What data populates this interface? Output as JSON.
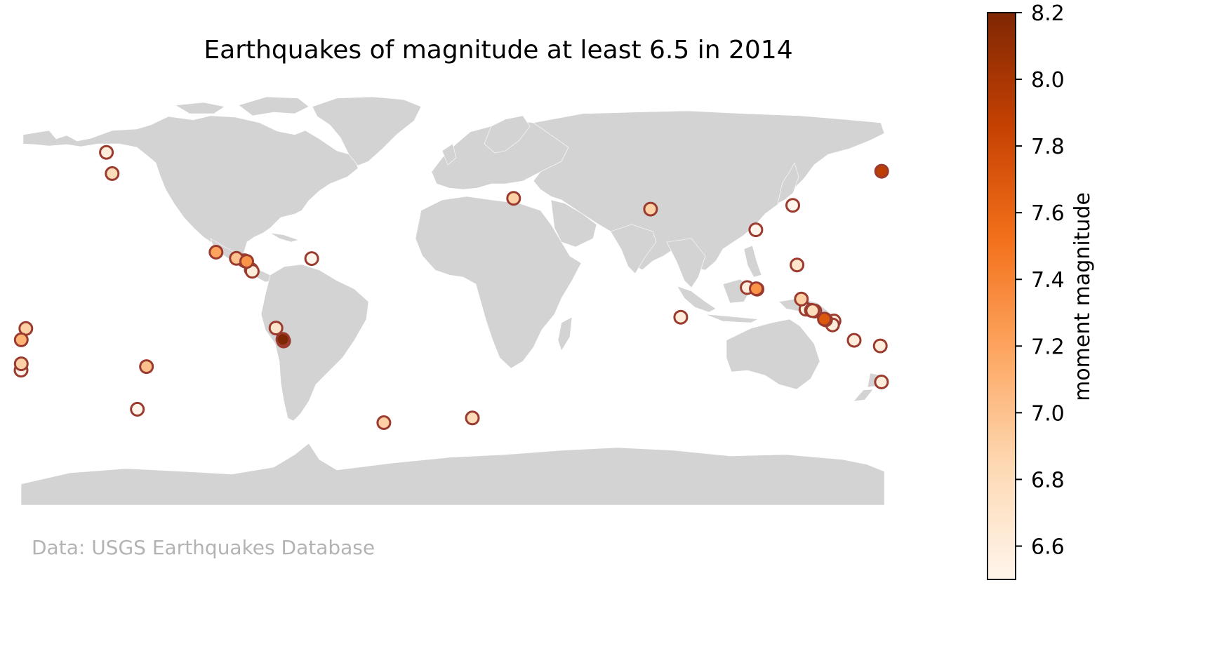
{
  "title": "Earthquakes of magnitude at least 6.5 in 2014",
  "credit": "Data: USGS Earthquakes Database",
  "colors": {
    "land": "#d3d3d3",
    "marker_edge": "#9b3a2e",
    "credit_text": "#b3b3b3",
    "colormap": [
      "#fff5eb",
      "#fdd9b4",
      "#fda762",
      "#f3701b",
      "#c54102",
      "#7f2704"
    ]
  },
  "chart_data": {
    "type": "scatter",
    "projection": "equirectangular",
    "xlim": [
      -180,
      180
    ],
    "ylim": [
      -90,
      84
    ],
    "colorbar": {
      "label": "moment magnitude",
      "range": [
        6.5,
        8.2
      ],
      "ticks": [
        "6.6",
        "6.8",
        "7.0",
        "7.2",
        "7.4",
        "7.6",
        "7.8",
        "8.0",
        "8.2"
      ],
      "cmap": "Oranges"
    },
    "points": [
      {
        "lon": -144.4,
        "lat": 59.8,
        "mag": 6.6
      },
      {
        "lon": -142.0,
        "lat": 50.8,
        "mag": 6.8
      },
      {
        "lon": -98.7,
        "lat": 17.4,
        "mag": 7.2
      },
      {
        "lon": -90.2,
        "lat": 14.8,
        "mag": 7.0
      },
      {
        "lon": -86.8,
        "lat": 13.8,
        "mag": 6.6
      },
      {
        "lon": -85.9,
        "lat": 13.5,
        "mag": 7.3
      },
      {
        "lon": -84.0,
        "lat": 10.0,
        "mag": 6.6
      },
      {
        "lon": -83.6,
        "lat": 9.3,
        "mag": 6.6
      },
      {
        "lon": -58.8,
        "lat": 14.7,
        "mag": 6.5
      },
      {
        "lon": -73.7,
        "lat": -14.8,
        "mag": 6.7
      },
      {
        "lon": -70.8,
        "lat": -19.6,
        "mag": 8.2
      },
      {
        "lon": -70.5,
        "lat": -20.3,
        "mag": 7.7
      },
      {
        "lon": -178.0,
        "lat": -15.0,
        "mag": 6.9
      },
      {
        "lon": -179.9,
        "lat": -19.8,
        "mag": 7.1
      },
      {
        "lon": -179.9,
        "lat": -30.0,
        "mag": 6.9
      },
      {
        "lon": -180.0,
        "lat": -32.7,
        "mag": 6.5
      },
      {
        "lon": -127.7,
        "lat": -31.2,
        "mag": 7.0
      },
      {
        "lon": -131.5,
        "lat": -49.3,
        "mag": 6.5
      },
      {
        "lon": -28.7,
        "lat": -55.0,
        "mag": 6.9
      },
      {
        "lon": 8.2,
        "lat": -53.0,
        "mag": 6.8
      },
      {
        "lon": 25.4,
        "lat": 40.3,
        "mag": 6.9
      },
      {
        "lon": 82.5,
        "lat": 35.7,
        "mag": 6.9
      },
      {
        "lon": 141.8,
        "lat": 37.3,
        "mag": 6.5
      },
      {
        "lon": 126.4,
        "lat": 26.9,
        "mag": 6.5
      },
      {
        "lon": 143.6,
        "lat": 12.0,
        "mag": 6.7
      },
      {
        "lon": 122.8,
        "lat": 2.4,
        "mag": 6.6
      },
      {
        "lon": 126.6,
        "lat": 1.9,
        "mag": 7.3
      },
      {
        "lon": 126.9,
        "lat": 1.7,
        "mag": 6.6
      },
      {
        "lon": 145.4,
        "lat": -2.5,
        "mag": 6.9
      },
      {
        "lon": 147.3,
        "lat": -6.8,
        "mag": 6.6
      },
      {
        "lon": 149.6,
        "lat": -7.3,
        "mag": 6.6
      },
      {
        "lon": 150.1,
        "lat": -7.4,
        "mag": 6.8
      },
      {
        "lon": 151.0,
        "lat": -7.6,
        "mag": 6.6
      },
      {
        "lon": 155.5,
        "lat": -11.3,
        "mag": 7.6
      },
      {
        "lon": 155.0,
        "lat": -11.0,
        "mag": 7.7
      },
      {
        "lon": 159.0,
        "lat": -11.8,
        "mag": 6.6
      },
      {
        "lon": 158.4,
        "lat": -13.5,
        "mag": 6.6
      },
      {
        "lon": 167.4,
        "lat": -20.0,
        "mag": 6.6
      },
      {
        "lon": 178.3,
        "lat": -22.4,
        "mag": 6.6
      },
      {
        "lon": 178.8,
        "lat": -37.7,
        "mag": 6.6
      },
      {
        "lon": 95.1,
        "lat": -10.2,
        "mag": 6.6
      },
      {
        "lon": 178.9,
        "lat": 51.8,
        "mag": 7.9
      }
    ]
  }
}
